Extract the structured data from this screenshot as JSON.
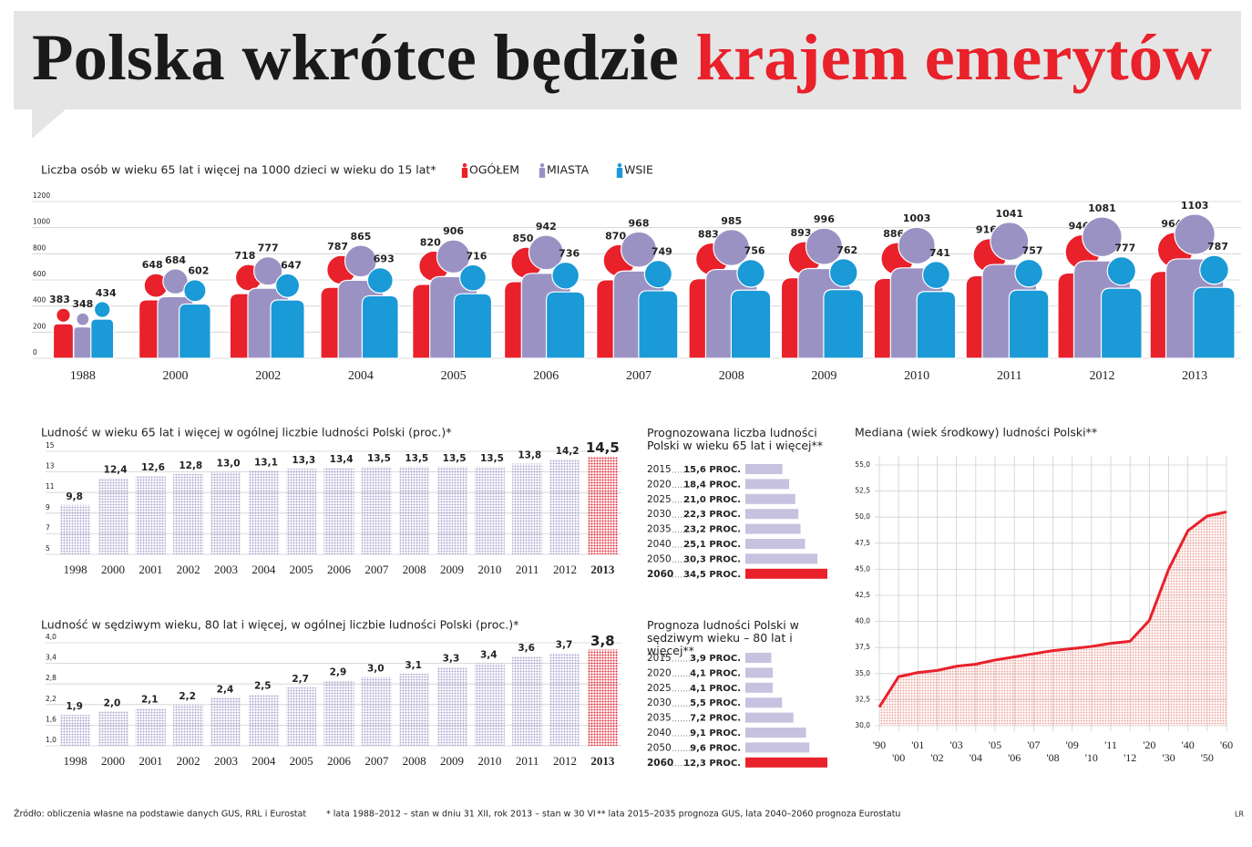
{
  "title": {
    "part_1": "Polska wkrótce będzie",
    "part_2": "krajem emerytów"
  },
  "chart_data": [
    {
      "type": "pictogram",
      "title": "Liczba osób w wieku 65 lat i więcej na 1000 dzieci w wieku do 15 lat*",
      "categories": [
        "1988",
        "2000",
        "2002",
        "2004",
        "2005",
        "2006",
        "2007",
        "2008",
        "2009",
        "2010",
        "2011",
        "2012",
        "2013"
      ],
      "series": [
        {
          "name": "OGÓŁEM",
          "color": "#e8212b",
          "values": [
            383,
            648,
            718,
            787,
            820,
            850,
            870,
            883,
            893,
            886,
            916,
            946,
            964
          ]
        },
        {
          "name": "MIASTA",
          "color": "#9b92c4",
          "values": [
            348,
            684,
            777,
            865,
            906,
            942,
            968,
            985,
            996,
            1003,
            1041,
            1081,
            1103
          ]
        },
        {
          "name": "WSIE",
          "color": "#1a9ad6",
          "values": [
            434,
            602,
            647,
            693,
            716,
            736,
            749,
            756,
            762,
            741,
            757,
            777,
            787
          ]
        }
      ],
      "ylim": [
        0,
        1200
      ],
      "yticks": [
        0,
        200,
        400,
        600,
        800,
        1000,
        1200
      ],
      "grid": true
    },
    {
      "type": "bar",
      "title": "Ludność w wieku 65 lat i więcej w ogólnej liczbie ludności Polski (proc.)*",
      "categories": [
        "1998",
        "2000",
        "2001",
        "2002",
        "2003",
        "2004",
        "2005",
        "2006",
        "2007",
        "2008",
        "2009",
        "2010",
        "2011",
        "2012",
        "2013"
      ],
      "values": [
        9.8,
        12.4,
        12.6,
        12.8,
        13.0,
        13.1,
        13.3,
        13.4,
        13.5,
        13.5,
        13.5,
        13.5,
        13.8,
        14.2,
        14.5
      ],
      "value_labels": [
        "9,8",
        "12,4",
        "12,6",
        "12,8",
        "13,0",
        "13,1",
        "13,3",
        "13,4",
        "13,5",
        "13,5",
        "13,5",
        "13,5",
        "13,8",
        "14,2",
        "14,5"
      ],
      "color": "#aaa5d0",
      "colors": [
        "#aaa5d0",
        "#aaa5d0",
        "#aaa5d0",
        "#aaa5d0",
        "#aaa5d0",
        "#aaa5d0",
        "#aaa5d0",
        "#aaa5d0",
        "#aaa5d0",
        "#aaa5d0",
        "#aaa5d0",
        "#aaa5d0",
        "#aaa5d0",
        "#aaa5d0",
        "#e8212b"
      ],
      "ylim": [
        5,
        15
      ],
      "yticks": [
        5,
        7,
        9,
        11,
        13,
        15
      ],
      "grid": true
    },
    {
      "type": "hbar",
      "title": "Prognozowana liczba ludności Polski w wieku 65 lat i więcej**",
      "categories": [
        "2015",
        "2020",
        "2025",
        "2030",
        "2035",
        "2040",
        "2050",
        "2060"
      ],
      "values": [
        15.6,
        18.4,
        21.0,
        22.3,
        23.2,
        25.1,
        30.3,
        34.5
      ],
      "value_labels": [
        "15,6 PROC.",
        "18,4 PROC.",
        "21,0 PROC.",
        "22,3 PROC.",
        "23,2 PROC.",
        "25,1 PROC.",
        "30,3 PROC.",
        "34,5 PROC."
      ],
      "color": "#c6c2e0",
      "colors": [
        "#c6c2e0",
        "#c6c2e0",
        "#c6c2e0",
        "#c6c2e0",
        "#c6c2e0",
        "#c6c2e0",
        "#c6c2e0",
        "#e8212b"
      ]
    },
    {
      "type": "bar",
      "title": "Ludność w sędziwym wieku, 80 lat i więcej, w ogólnej liczbie ludności Polski (proc.)*",
      "categories": [
        "1998",
        "2000",
        "2001",
        "2002",
        "2003",
        "2004",
        "2005",
        "2006",
        "2007",
        "2008",
        "2009",
        "2010",
        "2011",
        "2012",
        "2013"
      ],
      "values": [
        1.9,
        2.0,
        2.1,
        2.2,
        2.4,
        2.5,
        2.7,
        2.9,
        3.0,
        3.1,
        3.3,
        3.4,
        3.6,
        3.7,
        3.8
      ],
      "value_labels": [
        "1,9",
        "2,0",
        "2,1",
        "2,2",
        "2,4",
        "2,5",
        "2,7",
        "2,9",
        "3,0",
        "3,1",
        "3,3",
        "3,4",
        "3,6",
        "3,7",
        "3,8"
      ],
      "color": "#aaa5d0",
      "colors": [
        "#aaa5d0",
        "#aaa5d0",
        "#aaa5d0",
        "#aaa5d0",
        "#aaa5d0",
        "#aaa5d0",
        "#aaa5d0",
        "#aaa5d0",
        "#aaa5d0",
        "#aaa5d0",
        "#aaa5d0",
        "#aaa5d0",
        "#aaa5d0",
        "#aaa5d0",
        "#e8212b"
      ],
      "ylim": [
        1,
        4
      ],
      "yticks": [
        {
          "value": 1,
          "label": "1,0"
        },
        {
          "value": 1.6,
          "label": "1,6"
        },
        {
          "value": 2.2,
          "label": "2,2"
        },
        {
          "value": 2.8,
          "label": "2,8"
        },
        {
          "value": 3.4,
          "label": "3,4"
        },
        {
          "value": 4,
          "label": "4,0"
        }
      ],
      "grid": true
    },
    {
      "type": "hbar",
      "title": "Prognoza ludności Polski w sędziwym wieku – 80 lat i więcej**",
      "categories": [
        "2015",
        "2020",
        "2025",
        "2030",
        "2035",
        "2040",
        "2050",
        "2060"
      ],
      "values": [
        3.9,
        4.1,
        4.1,
        5.5,
        7.2,
        9.1,
        9.6,
        12.3
      ],
      "value_labels": [
        "3,9 PROC.",
        "4,1 PROC.",
        "4,1 PROC.",
        "5,5 PROC.",
        "7,2 PROC.",
        "9,1 PROC.",
        "9,6 PROC.",
        "12,3 PROC."
      ],
      "color": "#c6c2e0",
      "colors": [
        "#c6c2e0",
        "#c6c2e0",
        "#c6c2e0",
        "#c6c2e0",
        "#c6c2e0",
        "#c6c2e0",
        "#c6c2e0",
        "#e8212b"
      ]
    },
    {
      "type": "area",
      "title": "Mediana (wiek środkowy) ludności Polski**",
      "categories": [
        "'90",
        "'00",
        "'01",
        "'02",
        "'03",
        "'04",
        "'05",
        "'06",
        "'07",
        "'08",
        "'09",
        "'10",
        "'11",
        "'12",
        "'20",
        "'30",
        "'40",
        "'50",
        "'60"
      ],
      "values": [
        31.8,
        34.7,
        35.1,
        35.3,
        35.7,
        35.9,
        36.3,
        36.6,
        36.9,
        37.2,
        37.4,
        37.6,
        37.9,
        38.1,
        40.1,
        45.0,
        48.7,
        50.1,
        50.5
      ],
      "color": "#e8212b",
      "fill_color": "#f0a8a0",
      "ylim": [
        30,
        55
      ],
      "yticks": [
        {
          "value": 30,
          "label": "30,0"
        },
        {
          "value": 32.5,
          "label": "32,5"
        },
        {
          "value": 35,
          "label": "35,0"
        },
        {
          "value": 37.5,
          "label": "37,5"
        },
        {
          "value": 40,
          "label": "40,0"
        },
        {
          "value": 42.5,
          "label": "42,5"
        },
        {
          "value": 45,
          "label": "45,0"
        },
        {
          "value": 47.5,
          "label": "47,5"
        },
        {
          "value": 50,
          "label": "50,0"
        },
        {
          "value": 52.5,
          "label": "52,5"
        },
        {
          "value": 55,
          "label": "55,0"
        }
      ],
      "grid": true
    }
  ],
  "footer": {
    "source": "Źródło: obliczenia własne na podstawie danych GUS, RRL i Eurostat",
    "note_1": "* lata 1988–2012 – stan w dniu 31 XII, rok 2013 – stan w 30 VI",
    "note_2": "** lata 2015–2035 prognoza GUS, lata 2040–2060 prognoza Eurostatu",
    "credit": "LR"
  }
}
